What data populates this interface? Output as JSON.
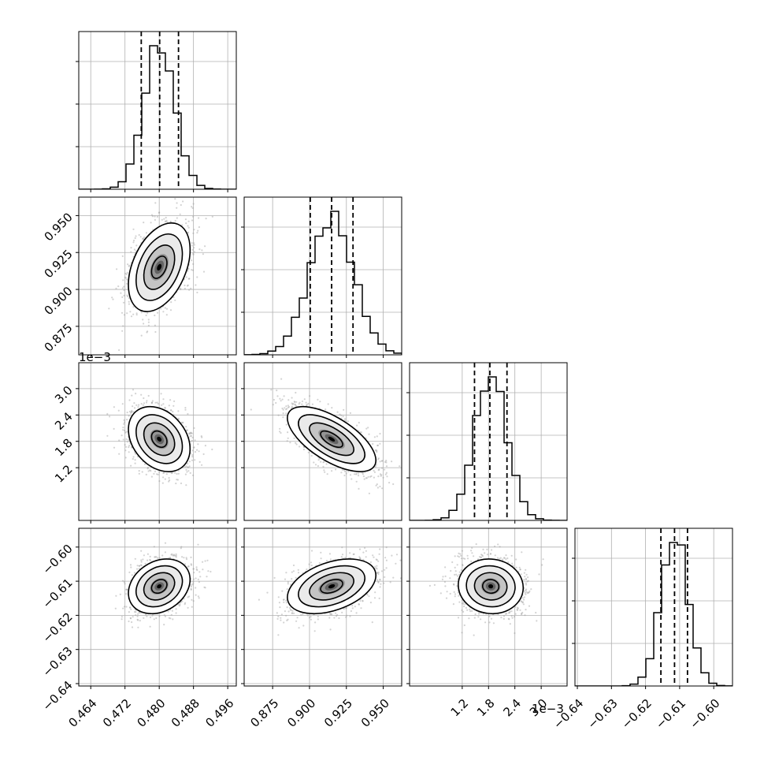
{
  "chart_data": {
    "type": "corner",
    "colors": {
      "line": "#000000",
      "grid": "#b0b0b0",
      "scatter": "#9e9e9e",
      "density_dark": "#000000"
    },
    "params": [
      {
        "range": [
          0.4612,
          0.498
        ],
        "ticks": [
          0.464,
          0.472,
          0.48,
          0.488,
          0.496
        ],
        "tick_labels": [
          "0.464",
          "0.472",
          "0.480",
          "0.488",
          "0.496"
        ],
        "offset_label": "",
        "mean": 0.48,
        "sd": 0.0036,
        "quantiles": [
          0.4758,
          0.4801,
          0.4845
        ]
      },
      {
        "range": [
          0.8557,
          0.9625
        ],
        "ticks": [
          0.875,
          0.9,
          0.925,
          0.95
        ],
        "tick_labels": [
          "0.875",
          "0.900",
          "0.925",
          "0.950"
        ],
        "offset_label": "",
        "mean": 0.915,
        "sd": 0.015,
        "quantiles": [
          0.9005,
          0.915,
          0.9295
        ]
      },
      {
        "range": [
          0.0,
          0.00359
        ],
        "ticks": [
          0.0012,
          0.0018,
          0.0024,
          0.003
        ],
        "tick_labels": [
          "1.2",
          "1.8",
          "2.4",
          "3.0"
        ],
        "offset_label": "1e−3",
        "mean": 0.00185,
        "sd": 0.00037,
        "quantiles": [
          0.00148,
          0.00183,
          0.00222
        ]
      },
      {
        "range": [
          -0.6407,
          -0.5945
        ],
        "ticks": [
          -0.64,
          -0.63,
          -0.62,
          -0.61,
          -0.6
        ],
        "tick_labels": [
          "−0.64",
          "−0.63",
          "−0.62",
          "−0.61",
          "−0.60"
        ],
        "offset_label": "",
        "mean": -0.6115,
        "sd": 0.004,
        "quantiles": [
          -0.6155,
          -0.6115,
          -0.6077
        ]
      }
    ],
    "correlations": [
      [
        1,
        0.4,
        -0.3,
        0.25
      ],
      [
        0.4,
        1,
        -0.65,
        0.4
      ],
      [
        -0.3,
        -0.65,
        1,
        -0.05
      ],
      [
        0.25,
        0.4,
        -0.05,
        1
      ]
    ],
    "histogram_bins": 20,
    "contour_sigma_levels": [
      0.5,
      1.0,
      1.5,
      2.0
    ],
    "grid": true,
    "legend": "none"
  }
}
